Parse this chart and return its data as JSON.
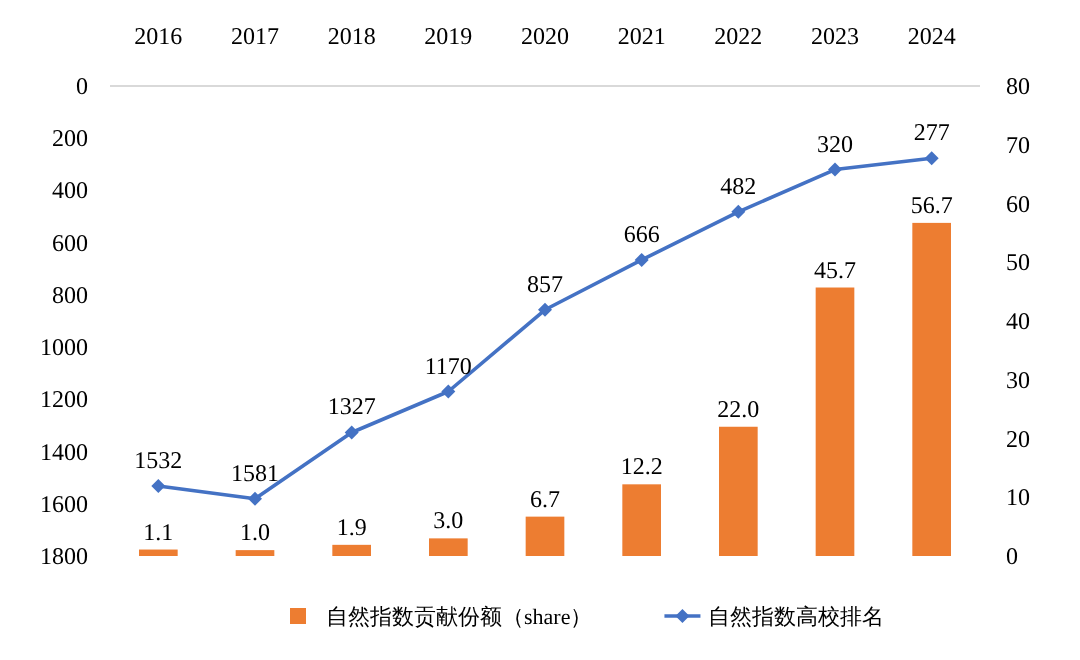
{
  "chart_data": {
    "type": "bar",
    "categories": [
      "2016",
      "2017",
      "2018",
      "2019",
      "2020",
      "2021",
      "2022",
      "2023",
      "2024"
    ],
    "ylim": [
      1800,
      0
    ],
    "yticks": [
      0,
      200,
      400,
      600,
      800,
      1000,
      1200,
      1400,
      1600,
      1800
    ],
    "y2lim": [
      0,
      80
    ],
    "y2ticks": [
      0,
      10,
      20,
      30,
      40,
      50,
      60,
      70,
      80
    ],
    "legend": "bottom",
    "series": [
      {
        "name": "自然指数贡献份额（share）",
        "axis": "y2",
        "color": "#ed7d31",
        "values": [
          1.1,
          1.0,
          1.9,
          3.0,
          6.7,
          12.2,
          22.0,
          45.7,
          56.7
        ],
        "value_labels": [
          "1.1",
          "1.0",
          "1.9",
          "3.0",
          "6.7",
          "12.2",
          "22.0",
          "45.7",
          "56.7"
        ]
      },
      {
        "name": "自然指数高校排名",
        "type": "line",
        "axis": "y",
        "color": "#4472c4",
        "marker": "diamond",
        "values": [
          1532,
          1581,
          1327,
          1170,
          857,
          666,
          482,
          320,
          277
        ],
        "value_labels": [
          "1532",
          "1581",
          "1327",
          "1170",
          "857",
          "666",
          "482",
          "320",
          "277"
        ]
      }
    ]
  }
}
